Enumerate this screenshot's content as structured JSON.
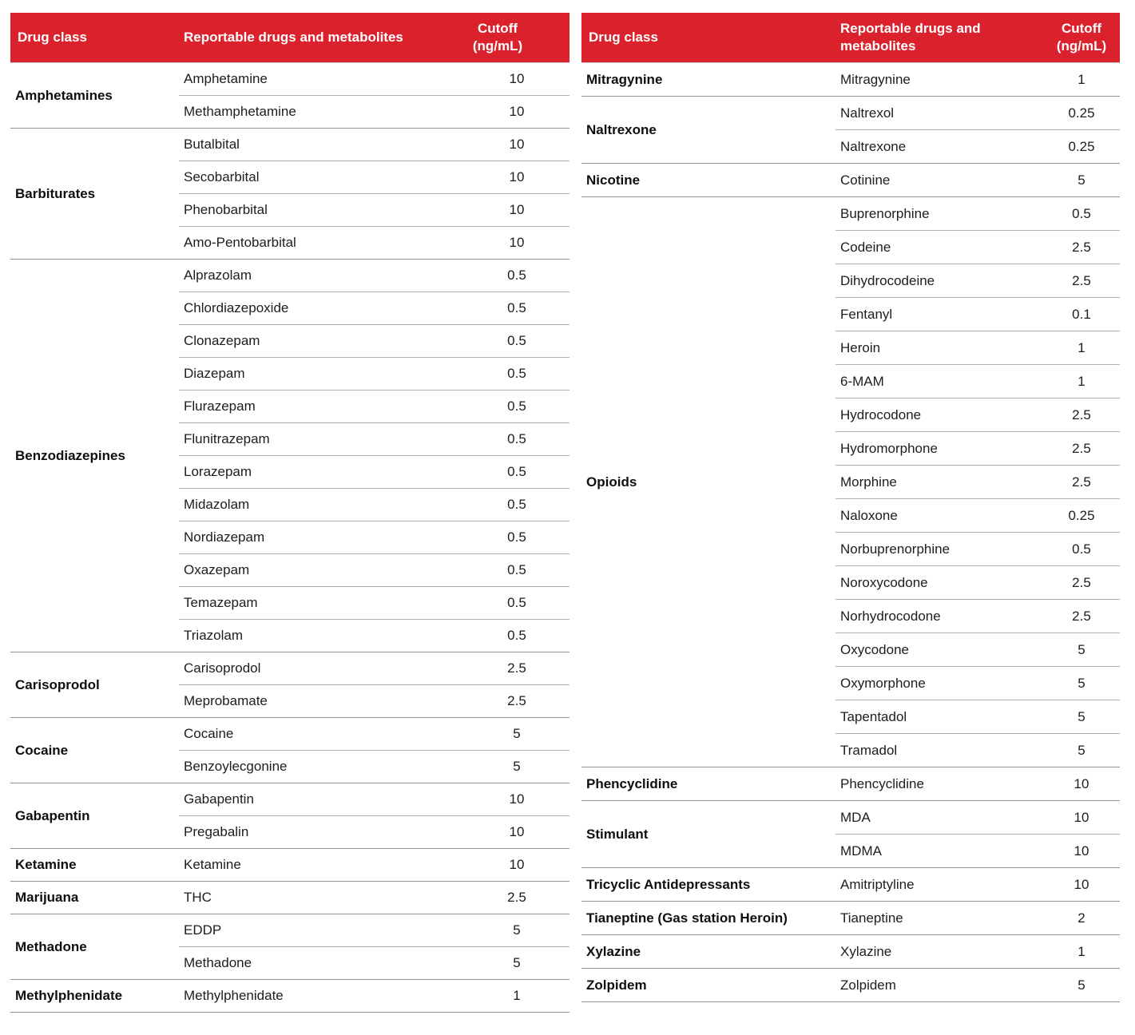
{
  "colors": {
    "header_bg": "#DA212C",
    "header_text": "#FFFFFF",
    "body_text": "#1D1D1D",
    "class_text": "#0F0F0F",
    "row_line": "#B0B0B0",
    "group_line": "#929292",
    "under_header_line": "#C9C9C9"
  },
  "tables": [
    {
      "id": "left",
      "header": {
        "drug_class": "Drug class",
        "drugs": "Reportable drugs and metabolites",
        "cutoff": "Cutoff\n(ng/mL)"
      },
      "groups": [
        {
          "drug_class": "Amphetamines",
          "rows": [
            {
              "drug": "Amphetamine",
              "cutoff": "10"
            },
            {
              "drug": "Methamphetamine",
              "cutoff": "10"
            }
          ]
        },
        {
          "drug_class": "Barbiturates",
          "rows": [
            {
              "drug": "Butalbital",
              "cutoff": "10"
            },
            {
              "drug": "Secobarbital",
              "cutoff": "10"
            },
            {
              "drug": "Phenobarbital",
              "cutoff": "10"
            },
            {
              "drug": "Amo-Pentobarbital",
              "cutoff": "10"
            }
          ]
        },
        {
          "drug_class": "Benzodiazepines",
          "rows": [
            {
              "drug": "Alprazolam",
              "cutoff": "0.5"
            },
            {
              "drug": "Chlordiazepoxide",
              "cutoff": "0.5"
            },
            {
              "drug": "Clonazepam",
              "cutoff": "0.5"
            },
            {
              "drug": "Diazepam",
              "cutoff": "0.5"
            },
            {
              "drug": "Flurazepam",
              "cutoff": "0.5"
            },
            {
              "drug": "Flunitrazepam",
              "cutoff": "0.5"
            },
            {
              "drug": "Lorazepam",
              "cutoff": "0.5"
            },
            {
              "drug": "Midazolam",
              "cutoff": "0.5"
            },
            {
              "drug": "Nordiazepam",
              "cutoff": "0.5"
            },
            {
              "drug": "Oxazepam",
              "cutoff": "0.5"
            },
            {
              "drug": "Temazepam",
              "cutoff": "0.5"
            },
            {
              "drug": "Triazolam",
              "cutoff": "0.5"
            }
          ]
        },
        {
          "drug_class": "Carisoprodol",
          "rows": [
            {
              "drug": "Carisoprodol",
              "cutoff": "2.5"
            },
            {
              "drug": "Meprobamate",
              "cutoff": "2.5"
            }
          ]
        },
        {
          "drug_class": "Cocaine",
          "rows": [
            {
              "drug": "Cocaine",
              "cutoff": "5"
            },
            {
              "drug": "Benzoylecgonine",
              "cutoff": "5"
            }
          ]
        },
        {
          "drug_class": "Gabapentin",
          "rows": [
            {
              "drug": "Gabapentin",
              "cutoff": "10"
            },
            {
              "drug": "Pregabalin",
              "cutoff": "10"
            }
          ]
        },
        {
          "drug_class": "Ketamine",
          "rows": [
            {
              "drug": "Ketamine",
              "cutoff": "10"
            }
          ]
        },
        {
          "drug_class": "Marijuana",
          "rows": [
            {
              "drug": "THC",
              "cutoff": "2.5"
            }
          ]
        },
        {
          "drug_class": "Methadone",
          "rows": [
            {
              "drug": "EDDP",
              "cutoff": "5"
            },
            {
              "drug": "Methadone",
              "cutoff": "5"
            }
          ]
        },
        {
          "drug_class": "Methylphenidate",
          "rows": [
            {
              "drug": "Methylphenidate",
              "cutoff": "1"
            }
          ]
        }
      ]
    },
    {
      "id": "right",
      "header": {
        "drug_class": "Drug class",
        "drugs": "Reportable drugs and metabolites",
        "cutoff": "Cutoff\n(ng/mL)"
      },
      "groups": [
        {
          "drug_class": "Mitragynine",
          "rows": [
            {
              "drug": "Mitragynine",
              "cutoff": "1"
            }
          ]
        },
        {
          "drug_class": "Naltrexone",
          "rows": [
            {
              "drug": "Naltrexol",
              "cutoff": "0.25"
            },
            {
              "drug": "Naltrexone",
              "cutoff": "0.25"
            }
          ]
        },
        {
          "drug_class": "Nicotine",
          "rows": [
            {
              "drug": "Cotinine",
              "cutoff": "5"
            }
          ]
        },
        {
          "drug_class": "Opioids",
          "rows": [
            {
              "drug": "Buprenorphine",
              "cutoff": "0.5"
            },
            {
              "drug": "Codeine",
              "cutoff": "2.5"
            },
            {
              "drug": "Dihydrocodeine",
              "cutoff": "2.5"
            },
            {
              "drug": "Fentanyl",
              "cutoff": "0.1"
            },
            {
              "drug": "Heroin",
              "cutoff": "1"
            },
            {
              "drug": "6-MAM",
              "cutoff": "1"
            },
            {
              "drug": "Hydrocodone",
              "cutoff": "2.5"
            },
            {
              "drug": "Hydromorphone",
              "cutoff": "2.5"
            },
            {
              "drug": "Morphine",
              "cutoff": "2.5"
            },
            {
              "drug": "Naloxone",
              "cutoff": "0.25"
            },
            {
              "drug": "Norbuprenorphine",
              "cutoff": "0.5"
            },
            {
              "drug": "Noroxycodone",
              "cutoff": "2.5"
            },
            {
              "drug": "Norhydrocodone",
              "cutoff": "2.5"
            },
            {
              "drug": "Oxycodone",
              "cutoff": "5"
            },
            {
              "drug": "Oxymorphone",
              "cutoff": "5"
            },
            {
              "drug": "Tapentadol",
              "cutoff": "5"
            },
            {
              "drug": "Tramadol",
              "cutoff": "5"
            }
          ]
        },
        {
          "drug_class": "Phencyclidine",
          "rows": [
            {
              "drug": "Phencyclidine",
              "cutoff": "10"
            }
          ]
        },
        {
          "drug_class": "Stimulant",
          "rows": [
            {
              "drug": "MDA",
              "cutoff": "10"
            },
            {
              "drug": "MDMA",
              "cutoff": "10"
            }
          ]
        },
        {
          "drug_class": "Tricyclic Antidepressants",
          "rows": [
            {
              "drug": "Amitriptyline",
              "cutoff": "10"
            }
          ]
        },
        {
          "drug_class": "Tianeptine (Gas station Heroin)",
          "rows": [
            {
              "drug": "Tianeptine",
              "cutoff": "2"
            }
          ]
        },
        {
          "drug_class": "Xylazine",
          "rows": [
            {
              "drug": "Xylazine",
              "cutoff": "1"
            }
          ]
        },
        {
          "drug_class": "Zolpidem",
          "rows": [
            {
              "drug": "Zolpidem",
              "cutoff": "5"
            }
          ]
        }
      ]
    }
  ]
}
